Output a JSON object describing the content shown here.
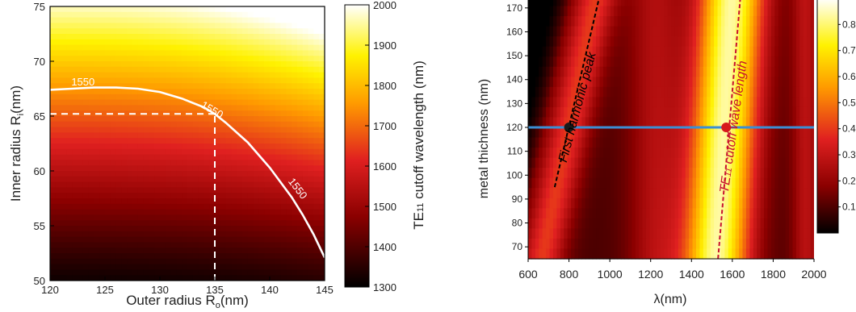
{
  "chart_data": [
    {
      "type": "heatmap",
      "title": "",
      "xlabel": "Outer radius R",
      "xlabel_sub": "o",
      "xlabel_unit": "(nm)",
      "ylabel": "Inner radius R",
      "ylabel_sub": "i",
      "ylabel_unit": "(nm)",
      "xlim": [
        120,
        145
      ],
      "ylim": [
        50,
        75
      ],
      "x_ticks": [
        120,
        125,
        130,
        135,
        140,
        145
      ],
      "y_ticks": [
        50,
        55,
        60,
        65,
        70,
        75
      ],
      "grid": false,
      "colorscale": "hot",
      "colorbar": {
        "label_pre": "TE",
        "label_sub": "11",
        "label_post": " cutoff wavelength (nm)",
        "range": [
          1300,
          2000
        ],
        "ticks": [
          1300,
          1400,
          1500,
          1600,
          1700,
          1800,
          1900,
          2000
        ]
      },
      "contour": {
        "level": 1550,
        "labels": [
          "1550",
          "1550",
          "1550"
        ],
        "color": "#ffffff",
        "points": [
          [
            120,
            67.4
          ],
          [
            122,
            67.5
          ],
          [
            124,
            67.6
          ],
          [
            126,
            67.6
          ],
          [
            128,
            67.5
          ],
          [
            130,
            67.2
          ],
          [
            132,
            66.6
          ],
          [
            134,
            65.8
          ],
          [
            135,
            65.2
          ],
          [
            136,
            64.4
          ],
          [
            138,
            62.6
          ],
          [
            140,
            60.3
          ],
          [
            142,
            57.6
          ],
          [
            143,
            56.0
          ],
          [
            144,
            54.2
          ],
          [
            145,
            52.1
          ]
        ]
      },
      "marker_lines": [
        {
          "axis": "y",
          "value": 65.2,
          "from": 120,
          "to": 135,
          "style": "dashed",
          "color": "#ffffff"
        },
        {
          "axis": "x",
          "value": 135,
          "from": 50,
          "to": 65.2,
          "style": "dashed",
          "color": "#ffffff"
        }
      ]
    },
    {
      "type": "heatmap",
      "title": "",
      "xlabel": "λ(nm)",
      "ylabel": "metal thichness (nm)",
      "xlim": [
        600,
        2000
      ],
      "ylim": [
        65,
        175
      ],
      "x_ticks": [
        600,
        800,
        1000,
        1200,
        1400,
        1600,
        1800,
        2000
      ],
      "y_ticks": [
        70,
        80,
        90,
        100,
        110,
        120,
        130,
        140,
        150,
        160,
        170
      ],
      "grid": false,
      "colorscale": "hot",
      "colorbar": {
        "label": "",
        "range": [
          0,
          0.9
        ],
        "ticks": [
          0.1,
          0.2,
          0.3,
          0.4,
          0.5,
          0.6,
          0.7,
          0.8
        ]
      },
      "annotations": [
        {
          "label": "First harmonic peak",
          "color": "#000000",
          "style": "dashed",
          "from": [
            730,
            95
          ],
          "to": [
            950,
            175
          ]
        },
        {
          "label_pre": "TE",
          "label_sub": "11",
          "label_post": " cutoff wave length",
          "color": "#c8102e",
          "style": "dashed",
          "from": [
            1530,
            65
          ],
          "to": [
            1640,
            175
          ]
        }
      ],
      "hline": {
        "value": 120,
        "color": "#3b8fd4"
      },
      "points": [
        {
          "x": 800,
          "y": 120,
          "color": "#1a1a1a"
        },
        {
          "x": 1570,
          "y": 120,
          "color": "#d7191c"
        }
      ]
    }
  ]
}
